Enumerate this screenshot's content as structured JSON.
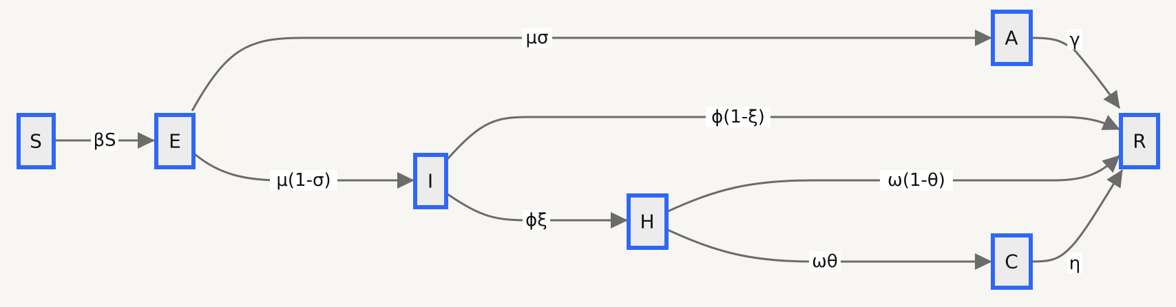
{
  "diagram": {
    "nodes": [
      {
        "id": "S",
        "label": "S"
      },
      {
        "id": "E",
        "label": "E"
      },
      {
        "id": "I",
        "label": "I"
      },
      {
        "id": "H",
        "label": "H"
      },
      {
        "id": "A",
        "label": "A"
      },
      {
        "id": "C",
        "label": "C"
      },
      {
        "id": "R",
        "label": "R"
      }
    ],
    "edges": [
      {
        "from": "S",
        "to": "E",
        "label": "βS"
      },
      {
        "from": "E",
        "to": "A",
        "label": "μσ"
      },
      {
        "from": "E",
        "to": "I",
        "label": "μ(1-σ)"
      },
      {
        "from": "I",
        "to": "R",
        "label": "ϕ(1-ξ)"
      },
      {
        "from": "I",
        "to": "H",
        "label": "ϕξ"
      },
      {
        "from": "H",
        "to": "R",
        "label": "ω(1-θ)"
      },
      {
        "from": "H",
        "to": "C",
        "label": "ωθ"
      },
      {
        "from": "A",
        "to": "R",
        "label": "γ"
      },
      {
        "from": "C",
        "to": "R",
        "label": "η"
      }
    ],
    "colors": {
      "node_border": "#2f67f5",
      "node_fill": "#ececec",
      "edge": "#6b6b6b",
      "background": "#f7f6f3"
    }
  }
}
